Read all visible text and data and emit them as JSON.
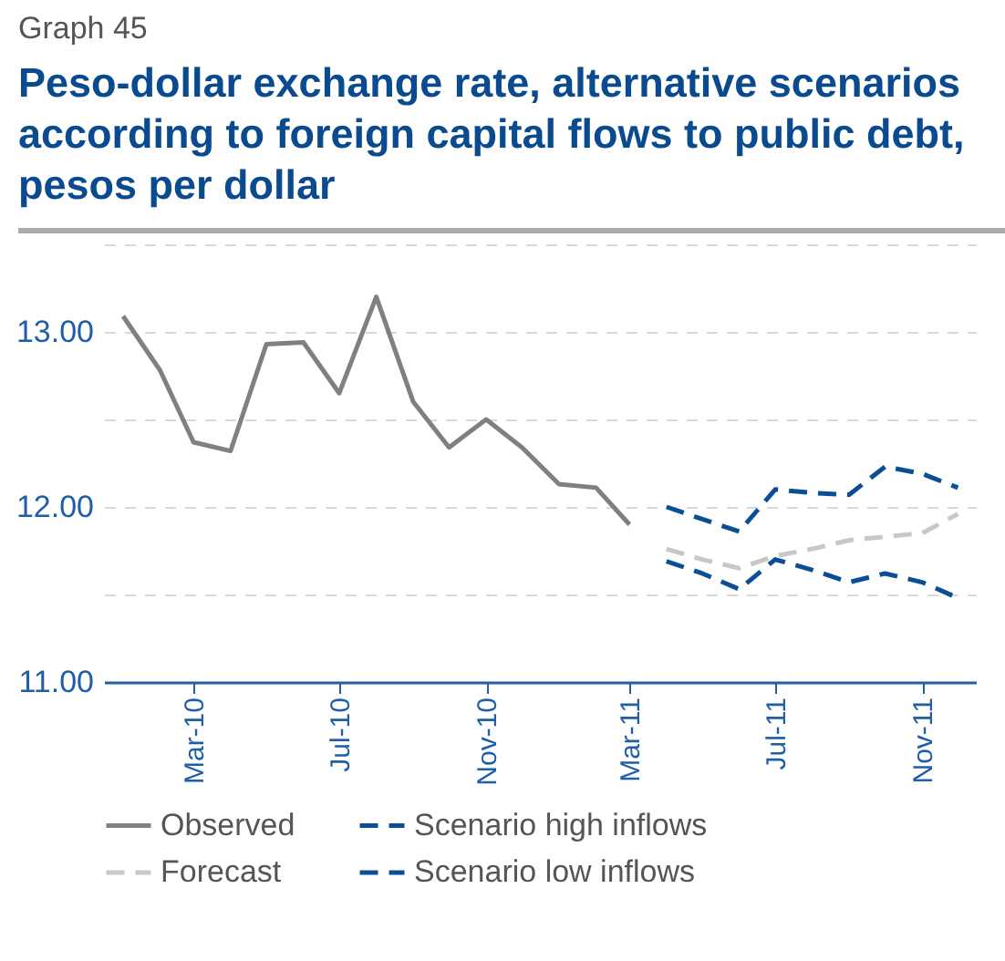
{
  "chart_data": {
    "type": "line",
    "subtitle": "Graph 45",
    "title": "Peso-dollar exchange rate, alternative scenarios according to foreign capital flows to public debt, pesos per dollar",
    "x": [
      "2010-01",
      "2010-02",
      "2010-03",
      "2010-04",
      "2010-05",
      "2010-06",
      "2010-07",
      "2010-08",
      "2010-09",
      "2010-10",
      "2010-11",
      "2010-12",
      "2011-01",
      "2011-02",
      "2011-03"
    ],
    "series": [
      {
        "name": "Observed",
        "color": "#808080",
        "line_style": "solid",
        "values": [
          13.09,
          12.78,
          12.37,
          12.32,
          12.93,
          12.94,
          12.65,
          13.2,
          12.6,
          12.34,
          12.5,
          12.34,
          12.13,
          12.11,
          11.9
        ]
      },
      {
        "name": "Scenario high inflows",
        "color": "#0a4f96",
        "line_style": "dashed",
        "x": [
          "2011-04",
          "2011-05",
          "2011-06",
          "2011-07",
          "2011-08",
          "2011-09",
          "2011-10",
          "2011-11",
          "2011-12"
        ],
        "values": [
          12.0,
          11.93,
          11.86,
          12.1,
          12.08,
          12.07,
          12.23,
          12.19,
          12.11
        ]
      },
      {
        "name": "Forecast",
        "color": "#c8c8c8",
        "line_style": "dashed",
        "x": [
          "2011-04",
          "2011-05",
          "2011-06",
          "2011-07",
          "2011-08",
          "2011-09",
          "2011-10",
          "2011-11",
          "2011-12"
        ],
        "values": [
          11.76,
          11.7,
          11.65,
          11.72,
          11.76,
          11.81,
          11.83,
          11.85,
          11.96
        ]
      },
      {
        "name": "Scenario low inflows",
        "color": "#0a4f96",
        "line_style": "dashed",
        "x": [
          "2011-04",
          "2011-05",
          "2011-06",
          "2011-07",
          "2011-08",
          "2011-09",
          "2011-10",
          "2011-11",
          "2011-12"
        ],
        "values": [
          11.69,
          11.62,
          11.53,
          11.7,
          11.64,
          11.57,
          11.62,
          11.57,
          11.48
        ]
      }
    ],
    "xlim": [
      "2009-12-16",
      "2011-12-16"
    ],
    "xticks": [
      {
        "value": "2010-03",
        "label": "Mar-10"
      },
      {
        "value": "2010-07",
        "label": "Jul-10"
      },
      {
        "value": "2010-11",
        "label": "Nov-10"
      },
      {
        "value": "2011-03",
        "label": "Mar-11"
      },
      {
        "value": "2011-07",
        "label": "Jul-11"
      },
      {
        "value": "2011-11",
        "label": "Nov-11"
      }
    ],
    "ylim": [
      11,
      13.5
    ],
    "yticks": [
      {
        "value": 11,
        "label": "11.00"
      },
      {
        "value": 11.5,
        "label": null
      },
      {
        "value": 12,
        "label": "12.00"
      },
      {
        "value": 12.5,
        "label": null
      },
      {
        "value": 13,
        "label": "13.00"
      },
      {
        "value": 13.5,
        "label": null
      }
    ],
    "grid": "y",
    "legend": "bottom"
  }
}
